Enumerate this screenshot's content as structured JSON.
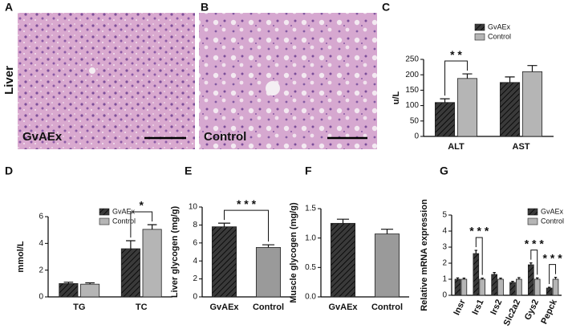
{
  "row_label": "Liver",
  "images": [
    {
      "panel": "A",
      "label": "GvAEx"
    },
    {
      "panel": "B",
      "label": "Control"
    }
  ],
  "chart_data": [
    {
      "type": "bar",
      "panel": "C",
      "ylabel": "u/L",
      "categories": [
        "ALT",
        "AST"
      ],
      "series": [
        {
          "name": "GvAEx",
          "color": "#3a3a3a",
          "hatch": true,
          "values": [
            110,
            175
          ],
          "errors": [
            12,
            18
          ]
        },
        {
          "name": "Control",
          "color": "#b5b5b5",
          "hatch": false,
          "values": [
            188,
            210
          ],
          "errors": [
            15,
            20
          ]
        }
      ],
      "ylim": [
        0,
        250
      ],
      "yticks": [
        0,
        50,
        100,
        150,
        200,
        250
      ],
      "annotations": [
        "* *"
      ]
    },
    {
      "type": "bar",
      "panel": "D",
      "ylabel": "mmol/L",
      "categories": [
        "TG",
        "TC"
      ],
      "series": [
        {
          "name": "GvAEx",
          "color": "#3a3a3a",
          "hatch": true,
          "values": [
            1.0,
            3.6
          ],
          "errors": [
            0.1,
            0.6
          ]
        },
        {
          "name": "Control",
          "color": "#b5b5b5",
          "hatch": false,
          "values": [
            0.95,
            5.05
          ],
          "errors": [
            0.1,
            0.35
          ]
        }
      ],
      "ylim": [
        0,
        6
      ],
      "yticks": [
        0,
        2,
        4,
        6
      ],
      "annotations": [
        "*"
      ]
    },
    {
      "type": "bar",
      "panel": "E",
      "ylabel": "Liver glycogen (mg/g)",
      "categories": [
        "GvAEx",
        "Control"
      ],
      "values": [
        7.8,
        5.5
      ],
      "errors": [
        0.4,
        0.3
      ],
      "colors": [
        "#3a3a3a",
        "#9a9a9a"
      ],
      "hatch": [
        true,
        false
      ],
      "ylim": [
        0,
        10
      ],
      "yticks": [
        0,
        2,
        4,
        6,
        8,
        10
      ],
      "annotations": [
        "* * *"
      ]
    },
    {
      "type": "bar",
      "panel": "F",
      "ylabel": "Muscle glycogen (mg/g)",
      "categories": [
        "GvAEx",
        "Control"
      ],
      "values": [
        1.25,
        1.07
      ],
      "errors": [
        0.07,
        0.08
      ],
      "colors": [
        "#3a3a3a",
        "#9a9a9a"
      ],
      "hatch": [
        true,
        false
      ],
      "ylim": [
        0,
        1.5
      ],
      "yticks": [
        {
          "value": 0,
          "label": "0.0"
        },
        0.5,
        {
          "value": 1,
          "label": "1.0"
        },
        1.5
      ]
    },
    {
      "type": "bar",
      "panel": "G",
      "ylabel": "Relative mRNA expression",
      "categories": [
        "Insr",
        "Irs1",
        "Irs2",
        "Slc2a2",
        "Gys2",
        "Pepck"
      ],
      "series": [
        {
          "name": "GvAEx",
          "color": "#3a3a3a",
          "hatch": true,
          "values": [
            1.0,
            2.6,
            1.3,
            0.8,
            1.9,
            0.45
          ],
          "errors": [
            0.08,
            0.2,
            0.12,
            0.07,
            0.12,
            0.05
          ]
        },
        {
          "name": "Control",
          "color": "#b5b5b5",
          "hatch": false,
          "values": [
            1.0,
            1.0,
            1.0,
            1.0,
            1.0,
            1.0
          ],
          "errors": [
            0.07,
            0.07,
            0.07,
            0.1,
            0.08,
            0.12
          ]
        }
      ],
      "ylim": [
        0,
        5
      ],
      "yticks": [
        0,
        1,
        2,
        3,
        4,
        5
      ],
      "annotations": [
        "* * *",
        "* * *",
        "* * *"
      ]
    }
  ]
}
